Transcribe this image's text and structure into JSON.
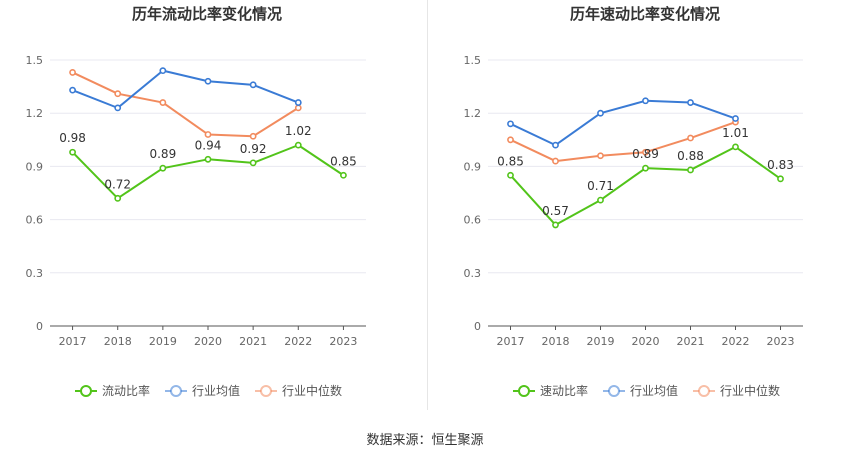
{
  "source": {
    "label": "数据来源：",
    "name": "恒生聚源"
  },
  "chart_data": [
    {
      "type": "line",
      "title": "历年流动比率变化情况",
      "xlabel": "",
      "ylabel": "",
      "categories": [
        "2017",
        "2018",
        "2019",
        "2020",
        "2021",
        "2022",
        "2023"
      ],
      "ylim": [
        0,
        1.5
      ],
      "yticks": [
        "0",
        "0.3",
        "0.6",
        "0.9",
        "1.2",
        "1.5"
      ],
      "grid": true,
      "legend_position": "bottom",
      "series": [
        {
          "name": "流动比率",
          "color": "#52c41a",
          "labels": true,
          "values": [
            0.98,
            0.72,
            0.89,
            0.94,
            0.92,
            1.02,
            0.85
          ],
          "value_labels": [
            "0.98",
            "0.72",
            "0.89",
            "0.94",
            "0.92",
            "1.02",
            "0.85"
          ]
        },
        {
          "name": "行业均值",
          "color": "#3a7bd5",
          "labels": false,
          "values": [
            1.33,
            1.23,
            1.44,
            1.38,
            1.36,
            1.26,
            null
          ]
        },
        {
          "name": "行业中位数",
          "color": "#f28b5e",
          "labels": false,
          "values": [
            1.43,
            1.31,
            1.26,
            1.08,
            1.07,
            1.23,
            null
          ]
        }
      ]
    },
    {
      "type": "line",
      "title": "历年速动比率变化情况",
      "xlabel": "",
      "ylabel": "",
      "categories": [
        "2017",
        "2018",
        "2019",
        "2020",
        "2021",
        "2022",
        "2023"
      ],
      "ylim": [
        0,
        1.5
      ],
      "yticks": [
        "0",
        "0.3",
        "0.6",
        "0.9",
        "1.2",
        "1.5"
      ],
      "grid": true,
      "legend_position": "bottom",
      "series": [
        {
          "name": "速动比率",
          "color": "#52c41a",
          "labels": true,
          "values": [
            0.85,
            0.57,
            0.71,
            0.89,
            0.88,
            1.01,
            0.83
          ],
          "value_labels": [
            "0.85",
            "0.57",
            "0.71",
            "0.89",
            "0.88",
            "1.01",
            "0.83"
          ]
        },
        {
          "name": "行业均值",
          "color": "#3a7bd5",
          "labels": false,
          "values": [
            1.14,
            1.02,
            1.2,
            1.27,
            1.26,
            1.17,
            null
          ]
        },
        {
          "name": "行业中位数",
          "color": "#f28b5e",
          "labels": false,
          "values": [
            1.05,
            0.93,
            0.96,
            0.98,
            1.06,
            1.15,
            null
          ]
        }
      ]
    }
  ]
}
